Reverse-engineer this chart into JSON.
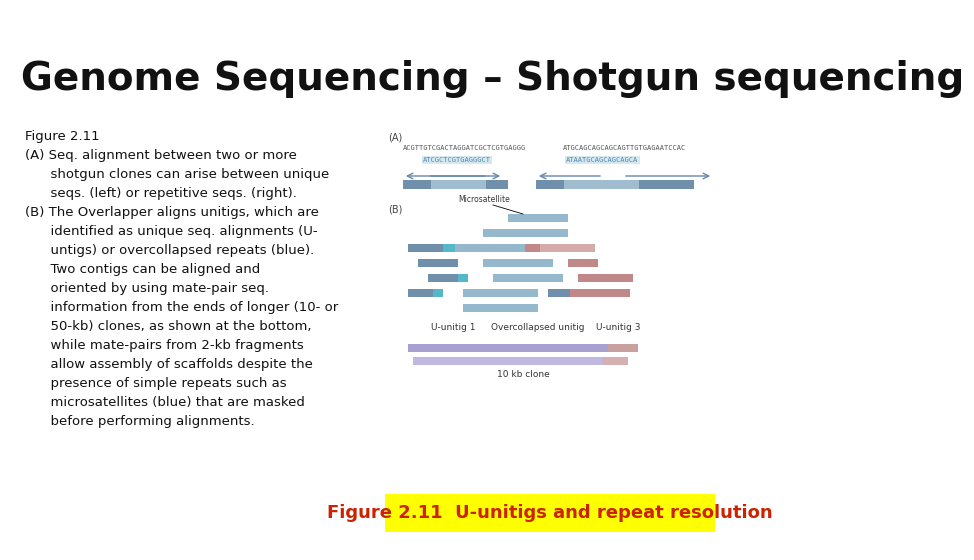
{
  "title": "Genome Sequencing – Shotgun sequencing",
  "title_color": "#111111",
  "title_bg": "#ffffff",
  "top_bar_color": "#c8522a",
  "body_bg": "#ffffff",
  "caption_text": "Figure 2.11  U-unitigs and repeat resolution",
  "caption_bg": "#ffff00",
  "caption_color": "#cc2200",
  "left_text_lines": [
    "Figure 2.11",
    "(A) Seq. alignment between two or more",
    "      shotgun clones can arise between unique",
    "      seqs. (left) or repetitive seqs. (right).",
    "(B) The Overlapper aligns unitigs, which are",
    "      identified as unique seq. alignments (U-",
    "      untigs) or overcollapsed repeats (blue).",
    "      Two contigs can be aligned and",
    "      oriented by using mate-pair seq.",
    "      information from the ends of longer (10- or",
    "      50-kb) clones, as shown at the bottom,",
    "      while mate-pairs from 2-kb fragments",
    "      allow assembly of scaffolds despite the",
    "      presence of simple repeats such as",
    "      microsatellites (blue) that are masked",
    "      before performing alignments."
  ],
  "font_size_title": 28,
  "font_size_body": 9.5,
  "font_size_caption": 13,
  "seq_A_line1_left": "ACGTTGTCGACTAGGATCGCTCGTGAGGG",
  "seq_A_line1_right": "ATGCAGCAGCAGCAGTTGTGAGAATCCAC",
  "seq_A_line2_left": "ATCGCTCGTGAGGGCT",
  "seq_A_line2_right": "ATAATGCAGCAGCAGCA"
}
